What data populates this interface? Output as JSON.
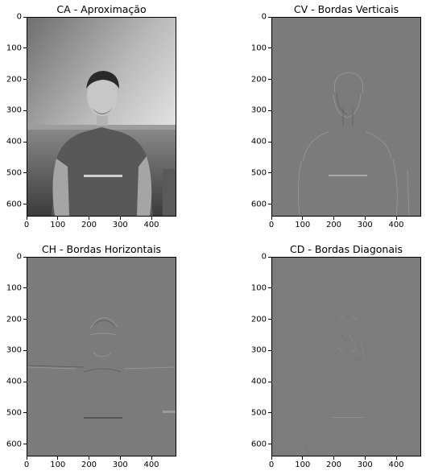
{
  "figure": {
    "panels": [
      {
        "id": "ca",
        "title": "CA - Aproximação"
      },
      {
        "id": "cv",
        "title": "CV - Bordas Verticais"
      },
      {
        "id": "ch",
        "title": "CH - Bordas Horizontais"
      },
      {
        "id": "cd",
        "title": "CD - Bordas Diagonais"
      }
    ]
  },
  "chart_data": [
    {
      "type": "image",
      "title": "CA - Aproximação",
      "xlim": [
        0,
        480
      ],
      "ylim": [
        640,
        0
      ],
      "xticks": [
        "0",
        "100",
        "200",
        "300",
        "400"
      ],
      "yticks": [
        "0",
        "100",
        "200",
        "300",
        "400",
        "500",
        "600"
      ],
      "colormap": "gray"
    },
    {
      "type": "image",
      "title": "CV - Bordas Verticais",
      "xlim": [
        0,
        480
      ],
      "ylim": [
        640,
        0
      ],
      "xticks": [
        "0",
        "100",
        "200",
        "300",
        "400"
      ],
      "yticks": [
        "0",
        "100",
        "200",
        "300",
        "400",
        "500",
        "600"
      ],
      "colormap": "gray"
    },
    {
      "type": "image",
      "title": "CH - Bordas Horizontais",
      "xlim": [
        0,
        480
      ],
      "ylim": [
        640,
        0
      ],
      "xticks": [
        "0",
        "100",
        "200",
        "300",
        "400"
      ],
      "yticks": [
        "0",
        "100",
        "200",
        "300",
        "400",
        "500",
        "600"
      ],
      "colormap": "gray"
    },
    {
      "type": "image",
      "title": "CD - Bordas Diagonais",
      "xlim": [
        0,
        480
      ],
      "ylim": [
        640,
        0
      ],
      "xticks": [
        "0",
        "100",
        "200",
        "300",
        "400"
      ],
      "yticks": [
        "0",
        "100",
        "200",
        "300",
        "400",
        "500",
        "600"
      ],
      "colormap": "gray"
    }
  ]
}
